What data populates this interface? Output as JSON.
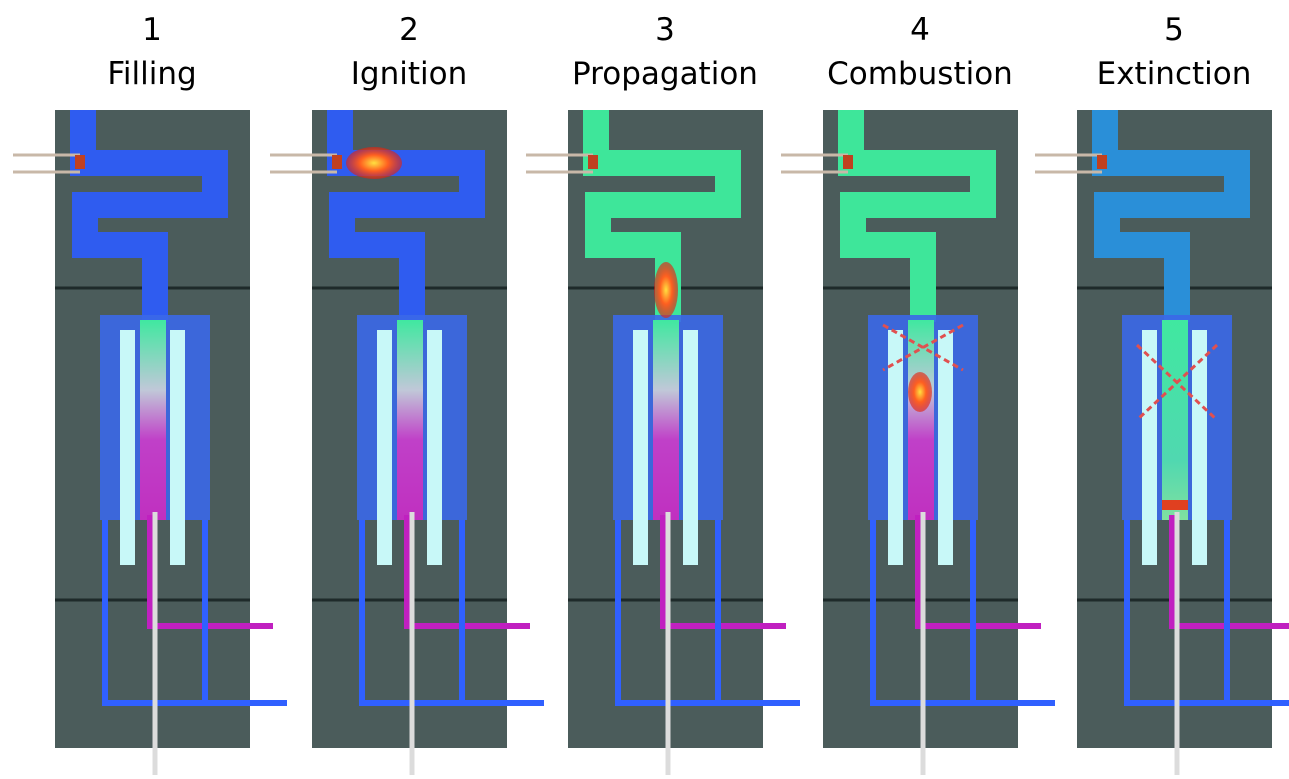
{
  "panels": [
    {
      "number": "1",
      "label": "Filling"
    },
    {
      "number": "2",
      "label": "Ignition"
    },
    {
      "number": "3",
      "label": "Propagation"
    },
    {
      "number": "4",
      "label": "Combustion"
    },
    {
      "number": "5",
      "label": "Extinction"
    }
  ]
}
